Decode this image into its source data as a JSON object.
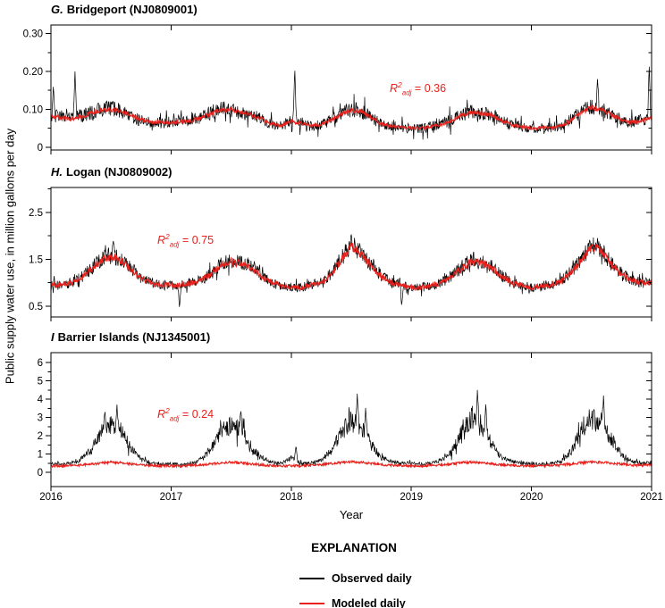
{
  "figure": {
    "y_axis_label": "Public supply water use, in million gallons per day",
    "x_axis_label": "Year",
    "x_tick_labels": [
      "2016",
      "2017",
      "2018",
      "2019",
      "2020",
      "2021"
    ]
  },
  "legend": {
    "title": "EXPLANATION",
    "items": [
      {
        "label": "Observed daily",
        "color": "#000000"
      },
      {
        "label": "Modeled daily",
        "color": "#e8211c"
      }
    ]
  },
  "chart_data": [
    {
      "type": "line",
      "panel_label": "G.",
      "station": "Bridgeport (NJ0809001)",
      "xlabel": "Year",
      "ylabel": "Public supply water use, in million gallons per day",
      "x_range": [
        2016,
        2021
      ],
      "ylim": [
        -0.0075,
        0.3225
      ],
      "yticks": [
        0,
        0.1,
        0.2,
        0.3
      ],
      "ytick_labels": [
        "0",
        "0.10",
        "0.20",
        "0.30"
      ],
      "yticks_minor": [
        0.05,
        0.15,
        0.25
      ],
      "annotation": {
        "base": "R",
        "sup": "2",
        "sub": "adj",
        "rest": " = 0.36",
        "value": 0.36
      },
      "series": [
        {
          "name": "Observed daily",
          "color": "#000000",
          "monthly": [
            0.08,
            0.082,
            0.085,
            0.082,
            0.092,
            0.1,
            0.102,
            0.095,
            0.082,
            0.07,
            0.065,
            0.065,
            0.065,
            0.068,
            0.072,
            0.08,
            0.092,
            0.1,
            0.1,
            0.09,
            0.085,
            0.075,
            0.06,
            0.055,
            0.07,
            0.065,
            0.055,
            0.06,
            0.072,
            0.088,
            0.1,
            0.095,
            0.078,
            0.06,
            0.055,
            0.052,
            0.05,
            0.05,
            0.055,
            0.062,
            0.072,
            0.086,
            0.092,
            0.09,
            0.086,
            0.07,
            0.06,
            0.055,
            0.05,
            0.05,
            0.052,
            0.058,
            0.074,
            0.094,
            0.108,
            0.1,
            0.086,
            0.072,
            0.065,
            0.072,
            0.08
          ],
          "noise": {
            "base": 0.013,
            "prop": 0.15,
            "ref": 0.05,
            "burst": 2.4
          },
          "spikes": [
            {
              "x": 2016.02,
              "y": 0.165
            },
            {
              "x": 2016.2,
              "y": 0.2
            },
            {
              "x": 2018.03,
              "y": 0.21
            },
            {
              "x": 2020.55,
              "y": 0.18
            },
            {
              "x": 2020.98,
              "y": 0.22
            }
          ]
        },
        {
          "name": "Modeled daily",
          "color": "#e8211c",
          "monthly": [
            0.08,
            0.078,
            0.075,
            0.08,
            0.09,
            0.098,
            0.1,
            0.095,
            0.085,
            0.072,
            0.066,
            0.065,
            0.065,
            0.066,
            0.07,
            0.078,
            0.09,
            0.098,
            0.1,
            0.092,
            0.086,
            0.075,
            0.062,
            0.056,
            0.068,
            0.064,
            0.056,
            0.06,
            0.072,
            0.086,
            0.098,
            0.094,
            0.08,
            0.062,
            0.056,
            0.052,
            0.05,
            0.05,
            0.055,
            0.06,
            0.07,
            0.085,
            0.092,
            0.09,
            0.085,
            0.07,
            0.06,
            0.055,
            0.05,
            0.05,
            0.052,
            0.056,
            0.072,
            0.092,
            0.105,
            0.1,
            0.085,
            0.072,
            0.066,
            0.07,
            0.078
          ],
          "noise": {
            "base": 0.004,
            "prop": 0.05,
            "ref": 0.05
          },
          "spikes": []
        }
      ]
    },
    {
      "type": "line",
      "panel_label": "H.",
      "station": "Logan (NJ0809002)",
      "xlabel": "Year",
      "ylabel": "Public supply water use, in million gallons per day",
      "x_range": [
        2016,
        2021
      ],
      "ylim": [
        0.27,
        3.03
      ],
      "yticks": [
        0.5,
        1.5,
        2.5
      ],
      "ytick_labels": [
        "0.5",
        "1.5",
        "2.5"
      ],
      "yticks_minor": [
        1.0,
        2.0,
        3.0
      ],
      "annotation": {
        "base": "R",
        "sup": "2",
        "sub": "adj",
        "rest": " = 0.75",
        "value": 0.75
      },
      "series": [
        {
          "name": "Observed daily",
          "color": "#000000",
          "monthly": [
            0.95,
            0.95,
            1.0,
            1.1,
            1.3,
            1.5,
            1.58,
            1.5,
            1.3,
            1.1,
            1.0,
            0.95,
            0.95,
            0.95,
            1.0,
            1.05,
            1.2,
            1.4,
            1.48,
            1.42,
            1.35,
            1.15,
            1.0,
            0.95,
            0.9,
            0.9,
            0.95,
            1.0,
            1.2,
            1.52,
            1.82,
            1.62,
            1.38,
            1.15,
            1.0,
            0.95,
            0.9,
            0.9,
            0.95,
            1.0,
            1.15,
            1.33,
            1.47,
            1.45,
            1.35,
            1.15,
            1.0,
            0.95,
            0.9,
            0.92,
            0.95,
            1.05,
            1.25,
            1.52,
            1.82,
            1.7,
            1.4,
            1.2,
            1.05,
            1.0,
            1.0
          ],
          "noise": {
            "base": 0.1,
            "prop": 0.12,
            "ref": 0.9,
            "burst": 1.9
          },
          "spikes": [
            {
              "x": 2016.52,
              "y": 1.9
            },
            {
              "x": 2017.07,
              "y": 0.45
            },
            {
              "x": 2018.5,
              "y": 2.02
            },
            {
              "x": 2018.92,
              "y": 0.5
            },
            {
              "x": 2020.55,
              "y": 1.95
            }
          ]
        },
        {
          "name": "Modeled daily",
          "color": "#e8211c",
          "monthly": [
            0.95,
            0.95,
            1.0,
            1.1,
            1.28,
            1.47,
            1.55,
            1.48,
            1.28,
            1.1,
            1.0,
            0.95,
            0.95,
            0.95,
            1.0,
            1.05,
            1.18,
            1.38,
            1.45,
            1.4,
            1.33,
            1.13,
            1.0,
            0.95,
            0.9,
            0.9,
            0.95,
            1.0,
            1.18,
            1.48,
            1.78,
            1.6,
            1.36,
            1.13,
            1.0,
            0.95,
            0.9,
            0.9,
            0.95,
            1.0,
            1.13,
            1.3,
            1.45,
            1.43,
            1.33,
            1.13,
            1.0,
            0.95,
            0.9,
            0.92,
            0.95,
            1.05,
            1.23,
            1.48,
            1.78,
            1.68,
            1.38,
            1.18,
            1.05,
            1.0,
            1.0
          ],
          "noise": {
            "base": 0.055,
            "prop": 0.05,
            "ref": 0.9
          },
          "spikes": []
        }
      ]
    },
    {
      "type": "line",
      "panel_label": "I",
      "station": "Barrier Islands (NJ1345001)",
      "xlabel": "Year",
      "ylabel": "Public supply water use, in million gallons per day",
      "x_range": [
        2016,
        2021
      ],
      "ylim": [
        -0.78,
        6.54
      ],
      "yticks": [
        0,
        1,
        2,
        3,
        4,
        5,
        6
      ],
      "ytick_labels": [
        "0",
        "1",
        "2",
        "3",
        "4",
        "5",
        "6"
      ],
      "yticks_minor": [
        0.5,
        1.5,
        2.5,
        3.5,
        4.5,
        5.5
      ],
      "annotation": {
        "base": "R",
        "sup": "2",
        "sub": "adj",
        "rest": " = 0.24",
        "value": 0.24
      },
      "series": [
        {
          "name": "Observed daily",
          "color": "#000000",
          "monthly": [
            0.5,
            0.45,
            0.5,
            0.7,
            1.2,
            2.2,
            2.6,
            2.4,
            1.3,
            0.7,
            0.5,
            0.45,
            0.45,
            0.4,
            0.5,
            0.7,
            1.3,
            2.2,
            2.6,
            2.3,
            1.4,
            0.8,
            0.55,
            0.5,
            0.8,
            0.5,
            0.5,
            0.7,
            1.2,
            2.2,
            2.8,
            2.5,
            1.5,
            0.8,
            0.6,
            0.5,
            0.5,
            0.45,
            0.5,
            0.7,
            1.1,
            2.3,
            2.9,
            2.6,
            1.6,
            0.8,
            0.6,
            0.5,
            0.45,
            0.45,
            0.5,
            0.6,
            1.2,
            2.3,
            2.8,
            2.6,
            1.8,
            1.0,
            0.6,
            0.5,
            0.55
          ],
          "noise": {
            "base": 0.09,
            "prop": 0.22,
            "ref": 0.5,
            "burst": 2.1
          },
          "spikes": [
            {
              "x": 2016.45,
              "y": 3.3
            },
            {
              "x": 2016.55,
              "y": 3.7
            },
            {
              "x": 2017.58,
              "y": 3.4
            },
            {
              "x": 2018.04,
              "y": 1.5
            },
            {
              "x": 2018.55,
              "y": 4.3
            },
            {
              "x": 2018.62,
              "y": 3.6
            },
            {
              "x": 2019.55,
              "y": 4.5
            },
            {
              "x": 2019.62,
              "y": 3.8
            },
            {
              "x": 2020.52,
              "y": 3.5
            },
            {
              "x": 2020.6,
              "y": 4.2
            }
          ]
        },
        {
          "name": "Modeled daily",
          "color": "#e8211c",
          "monthly": [
            0.35,
            0.35,
            0.38,
            0.4,
            0.45,
            0.5,
            0.55,
            0.52,
            0.46,
            0.4,
            0.36,
            0.35,
            0.35,
            0.34,
            0.38,
            0.42,
            0.46,
            0.52,
            0.56,
            0.52,
            0.46,
            0.4,
            0.36,
            0.35,
            0.36,
            0.35,
            0.38,
            0.42,
            0.48,
            0.54,
            0.58,
            0.54,
            0.48,
            0.42,
            0.38,
            0.36,
            0.35,
            0.35,
            0.38,
            0.4,
            0.46,
            0.52,
            0.56,
            0.52,
            0.47,
            0.42,
            0.38,
            0.36,
            0.35,
            0.35,
            0.38,
            0.4,
            0.46,
            0.52,
            0.56,
            0.54,
            0.5,
            0.44,
            0.4,
            0.38,
            0.4
          ],
          "noise": {
            "base": 0.065,
            "prop": 0.0,
            "ref": 0
          },
          "spikes": []
        }
      ]
    }
  ]
}
